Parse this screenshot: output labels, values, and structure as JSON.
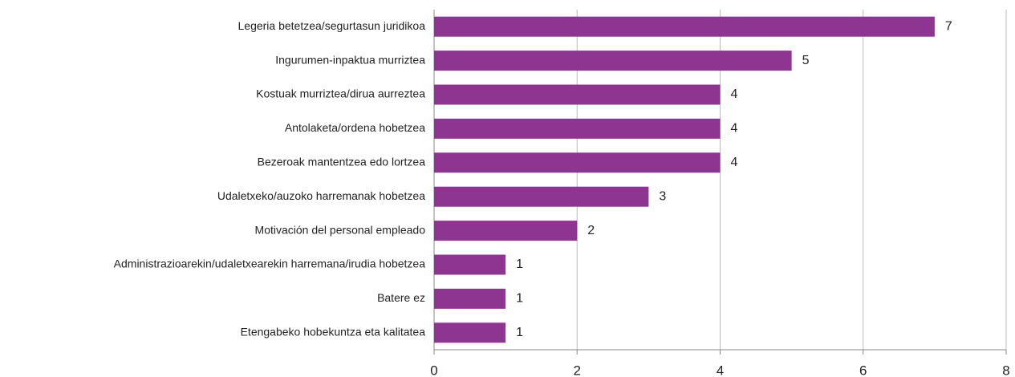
{
  "chart_data": {
    "type": "bar",
    "orientation": "horizontal",
    "categories": [
      "Legeria betetzea/segurtasun juridikoa",
      "Ingurumen-inpaktua murriztea",
      "Kostuak murriztea/dirua aurreztea",
      "Antolaketa/ordena hobetzea",
      "Bezeroak mantentzea edo lortzea",
      "Udaletxeko/auzoko harremanak hobetzea",
      "Motivación del personal empleado",
      "Administrazioarekin/udaletxearekin harremana/irudia hobetzea",
      "Batere ez",
      "Etengabeko hobekuntza eta kalitatea"
    ],
    "values": [
      7,
      5,
      4,
      4,
      4,
      3,
      2,
      1,
      1,
      1
    ],
    "color": "#8e3592",
    "xlim": [
      0,
      8
    ],
    "xticks": [
      0,
      2,
      4,
      6,
      8
    ],
    "grid": true
  }
}
